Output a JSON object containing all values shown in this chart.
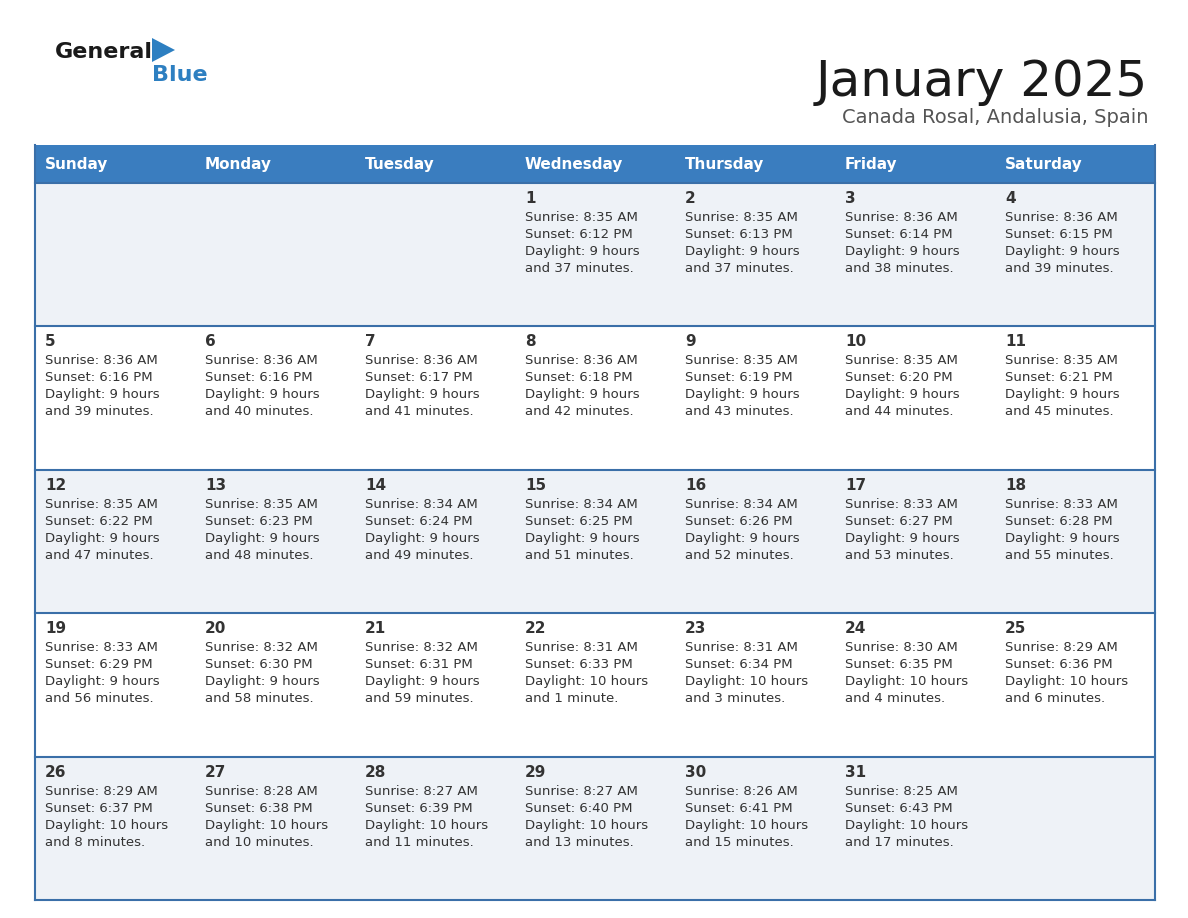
{
  "title": "January 2025",
  "subtitle": "Canada Rosal, Andalusia, Spain",
  "days_of_week": [
    "Sunday",
    "Monday",
    "Tuesday",
    "Wednesday",
    "Thursday",
    "Friday",
    "Saturday"
  ],
  "header_bg": "#3a7dbf",
  "header_text_color": "#ffffff",
  "row_bg": [
    "#eef2f7",
    "#ffffff",
    "#eef2f7",
    "#ffffff",
    "#eef2f7"
  ],
  "border_color": "#3a6fa8",
  "text_color": "#333333",
  "title_color": "#1a1a1a",
  "subtitle_color": "#555555",
  "calendar_data": [
    [
      {
        "day": "",
        "sunrise": "",
        "sunset": "",
        "daylight": ""
      },
      {
        "day": "",
        "sunrise": "",
        "sunset": "",
        "daylight": ""
      },
      {
        "day": "",
        "sunrise": "",
        "sunset": "",
        "daylight": ""
      },
      {
        "day": "1",
        "sunrise": "8:35 AM",
        "sunset": "6:12 PM",
        "daylight_line1": "Daylight: 9 hours",
        "daylight_line2": "and 37 minutes."
      },
      {
        "day": "2",
        "sunrise": "8:35 AM",
        "sunset": "6:13 PM",
        "daylight_line1": "Daylight: 9 hours",
        "daylight_line2": "and 37 minutes."
      },
      {
        "day": "3",
        "sunrise": "8:36 AM",
        "sunset": "6:14 PM",
        "daylight_line1": "Daylight: 9 hours",
        "daylight_line2": "and 38 minutes."
      },
      {
        "day": "4",
        "sunrise": "8:36 AM",
        "sunset": "6:15 PM",
        "daylight_line1": "Daylight: 9 hours",
        "daylight_line2": "and 39 minutes."
      }
    ],
    [
      {
        "day": "5",
        "sunrise": "8:36 AM",
        "sunset": "6:16 PM",
        "daylight_line1": "Daylight: 9 hours",
        "daylight_line2": "and 39 minutes."
      },
      {
        "day": "6",
        "sunrise": "8:36 AM",
        "sunset": "6:16 PM",
        "daylight_line1": "Daylight: 9 hours",
        "daylight_line2": "and 40 minutes."
      },
      {
        "day": "7",
        "sunrise": "8:36 AM",
        "sunset": "6:17 PM",
        "daylight_line1": "Daylight: 9 hours",
        "daylight_line2": "and 41 minutes."
      },
      {
        "day": "8",
        "sunrise": "8:36 AM",
        "sunset": "6:18 PM",
        "daylight_line1": "Daylight: 9 hours",
        "daylight_line2": "and 42 minutes."
      },
      {
        "day": "9",
        "sunrise": "8:35 AM",
        "sunset": "6:19 PM",
        "daylight_line1": "Daylight: 9 hours",
        "daylight_line2": "and 43 minutes."
      },
      {
        "day": "10",
        "sunrise": "8:35 AM",
        "sunset": "6:20 PM",
        "daylight_line1": "Daylight: 9 hours",
        "daylight_line2": "and 44 minutes."
      },
      {
        "day": "11",
        "sunrise": "8:35 AM",
        "sunset": "6:21 PM",
        "daylight_line1": "Daylight: 9 hours",
        "daylight_line2": "and 45 minutes."
      }
    ],
    [
      {
        "day": "12",
        "sunrise": "8:35 AM",
        "sunset": "6:22 PM",
        "daylight_line1": "Daylight: 9 hours",
        "daylight_line2": "and 47 minutes."
      },
      {
        "day": "13",
        "sunrise": "8:35 AM",
        "sunset": "6:23 PM",
        "daylight_line1": "Daylight: 9 hours",
        "daylight_line2": "and 48 minutes."
      },
      {
        "day": "14",
        "sunrise": "8:34 AM",
        "sunset": "6:24 PM",
        "daylight_line1": "Daylight: 9 hours",
        "daylight_line2": "and 49 minutes."
      },
      {
        "day": "15",
        "sunrise": "8:34 AM",
        "sunset": "6:25 PM",
        "daylight_line1": "Daylight: 9 hours",
        "daylight_line2": "and 51 minutes."
      },
      {
        "day": "16",
        "sunrise": "8:34 AM",
        "sunset": "6:26 PM",
        "daylight_line1": "Daylight: 9 hours",
        "daylight_line2": "and 52 minutes."
      },
      {
        "day": "17",
        "sunrise": "8:33 AM",
        "sunset": "6:27 PM",
        "daylight_line1": "Daylight: 9 hours",
        "daylight_line2": "and 53 minutes."
      },
      {
        "day": "18",
        "sunrise": "8:33 AM",
        "sunset": "6:28 PM",
        "daylight_line1": "Daylight: 9 hours",
        "daylight_line2": "and 55 minutes."
      }
    ],
    [
      {
        "day": "19",
        "sunrise": "8:33 AM",
        "sunset": "6:29 PM",
        "daylight_line1": "Daylight: 9 hours",
        "daylight_line2": "and 56 minutes."
      },
      {
        "day": "20",
        "sunrise": "8:32 AM",
        "sunset": "6:30 PM",
        "daylight_line1": "Daylight: 9 hours",
        "daylight_line2": "and 58 minutes."
      },
      {
        "day": "21",
        "sunrise": "8:32 AM",
        "sunset": "6:31 PM",
        "daylight_line1": "Daylight: 9 hours",
        "daylight_line2": "and 59 minutes."
      },
      {
        "day": "22",
        "sunrise": "8:31 AM",
        "sunset": "6:33 PM",
        "daylight_line1": "Daylight: 10 hours",
        "daylight_line2": "and 1 minute."
      },
      {
        "day": "23",
        "sunrise": "8:31 AM",
        "sunset": "6:34 PM",
        "daylight_line1": "Daylight: 10 hours",
        "daylight_line2": "and 3 minutes."
      },
      {
        "day": "24",
        "sunrise": "8:30 AM",
        "sunset": "6:35 PM",
        "daylight_line1": "Daylight: 10 hours",
        "daylight_line2": "and 4 minutes."
      },
      {
        "day": "25",
        "sunrise": "8:29 AM",
        "sunset": "6:36 PM",
        "daylight_line1": "Daylight: 10 hours",
        "daylight_line2": "and 6 minutes."
      }
    ],
    [
      {
        "day": "26",
        "sunrise": "8:29 AM",
        "sunset": "6:37 PM",
        "daylight_line1": "Daylight: 10 hours",
        "daylight_line2": "and 8 minutes."
      },
      {
        "day": "27",
        "sunrise": "8:28 AM",
        "sunset": "6:38 PM",
        "daylight_line1": "Daylight: 10 hours",
        "daylight_line2": "and 10 minutes."
      },
      {
        "day": "28",
        "sunrise": "8:27 AM",
        "sunset": "6:39 PM",
        "daylight_line1": "Daylight: 10 hours",
        "daylight_line2": "and 11 minutes."
      },
      {
        "day": "29",
        "sunrise": "8:27 AM",
        "sunset": "6:40 PM",
        "daylight_line1": "Daylight: 10 hours",
        "daylight_line2": "and 13 minutes."
      },
      {
        "day": "30",
        "sunrise": "8:26 AM",
        "sunset": "6:41 PM",
        "daylight_line1": "Daylight: 10 hours",
        "daylight_line2": "and 15 minutes."
      },
      {
        "day": "31",
        "sunrise": "8:25 AM",
        "sunset": "6:43 PM",
        "daylight_line1": "Daylight: 10 hours",
        "daylight_line2": "and 17 minutes."
      },
      {
        "day": "",
        "sunrise": "",
        "sunset": "",
        "daylight_line1": "",
        "daylight_line2": ""
      }
    ]
  ]
}
